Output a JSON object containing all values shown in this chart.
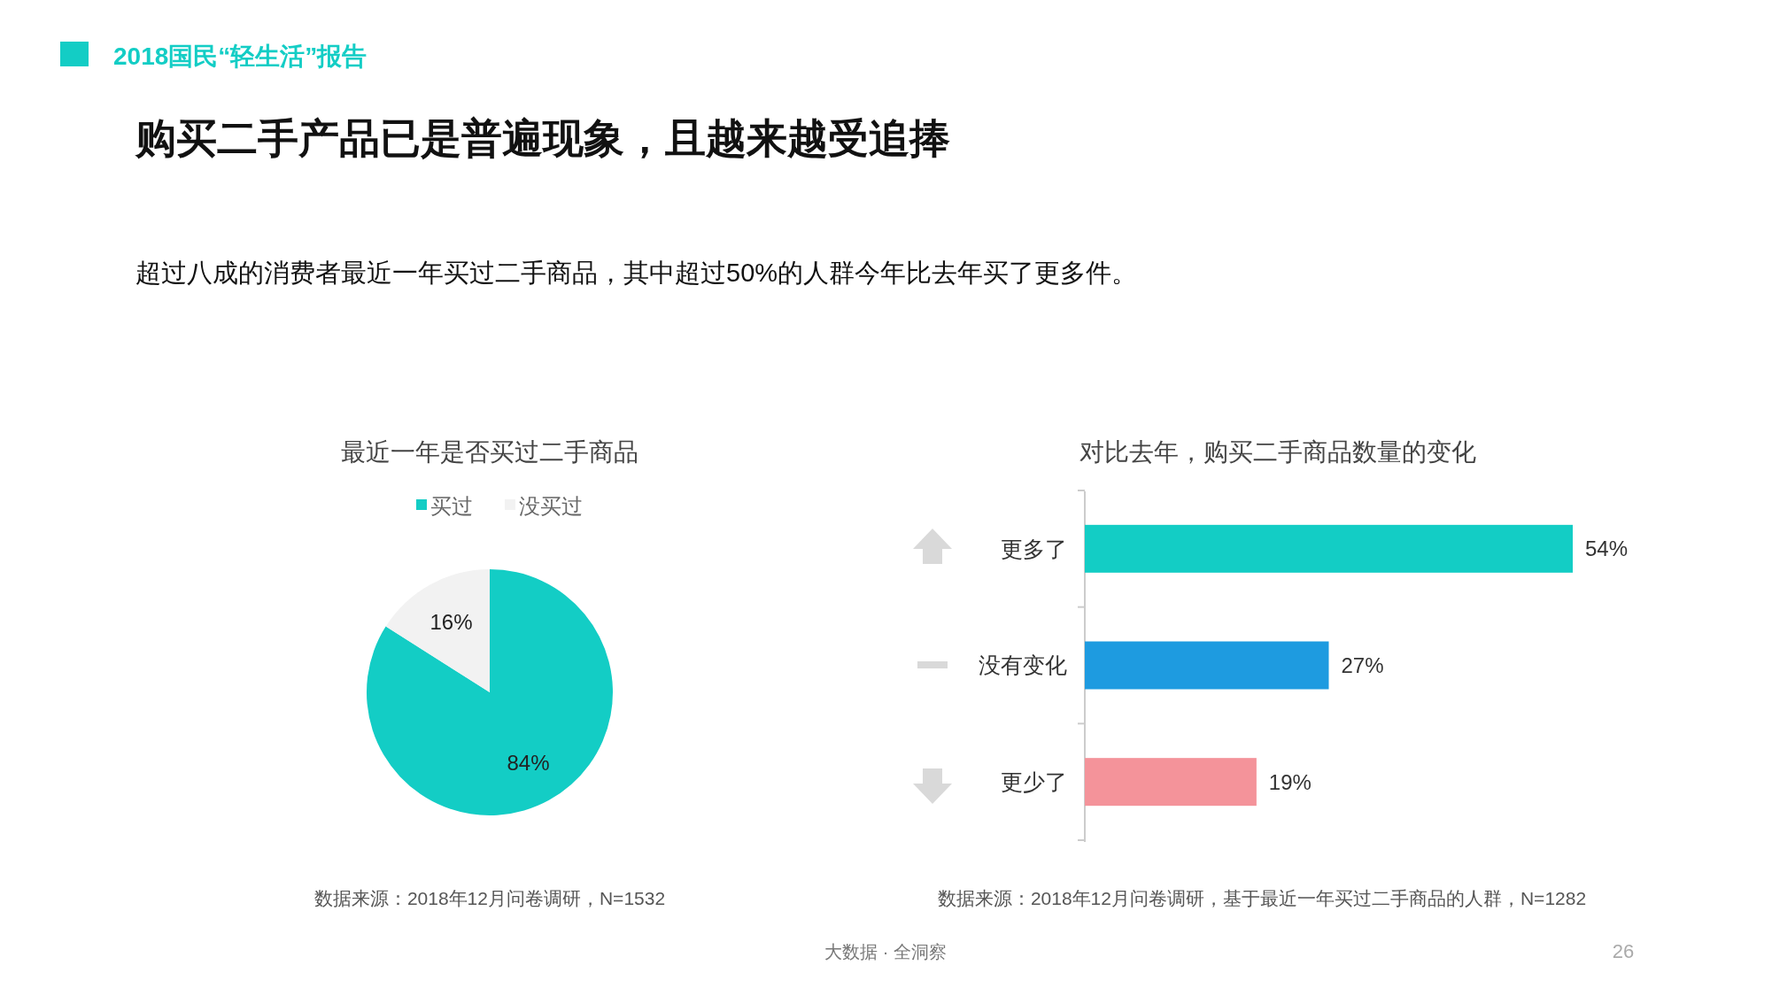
{
  "chart_data": [
    {
      "type": "other",
      "title": "购买二手产品已是普遍现象，且越来越受追捧",
      "subtitle": "超过八成的消费者最近一年买过二手商品，其中超过50%的人群今年比去年买了更多件。",
      "annotations": [
        "2018国民“轻生活”报告",
        "大数据 · 全洞察",
        "26"
      ]
    },
    {
      "type": "pie",
      "title": "最近一年是否买过二手商品",
      "categories": [
        "买过",
        "没买过"
      ],
      "values": [
        84,
        16
      ],
      "colors": [
        "#13cdc5",
        "#f2f2f2"
      ],
      "legend": "top",
      "value_labels": [
        "84%",
        "16%"
      ],
      "annotations": [
        "数据来源：2018年12月问卷调研，N=1532"
      ]
    },
    {
      "type": "bar",
      "orientation": "horizontal",
      "title": "对比去年，购买二手商品数量的变化",
      "categories": [
        "更多了",
        "没有变化",
        "更少了"
      ],
      "values": [
        54,
        27,
        19
      ],
      "colors": [
        "#13cdc5",
        "#1e9be0",
        "#f4939a"
      ],
      "value_labels": [
        "54%",
        "27%",
        "19%"
      ],
      "annotations": [
        "数据来源：2018年12月问卷调研，基于最近一年买过二手商品的人群，N=1282"
      ]
    }
  ]
}
